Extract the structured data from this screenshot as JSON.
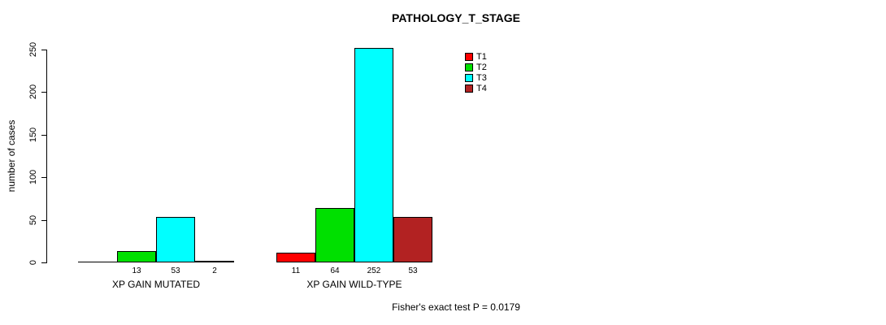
{
  "chart_data": {
    "type": "bar",
    "title": "PATHOLOGY_T_STAGE",
    "ylabel": "number of cases",
    "xlabel": "",
    "ylim": [
      0,
      250
    ],
    "yticks": [
      0,
      50,
      100,
      150,
      200,
      250
    ],
    "grid": false,
    "legend_position": "top-right",
    "series": [
      {
        "name": "T1",
        "color": "#FF0000"
      },
      {
        "name": "T2",
        "color": "#00E000"
      },
      {
        "name": "T3",
        "color": "#00FFFF"
      },
      {
        "name": "T4",
        "color": "#B22222"
      }
    ],
    "groups": [
      {
        "label": "XP GAIN MUTATED",
        "values": [
          0,
          13,
          53,
          2
        ],
        "value_labels": [
          "",
          "13",
          "53",
          "2"
        ]
      },
      {
        "label": "XP GAIN WILD-TYPE",
        "values": [
          11,
          64,
          252,
          53
        ],
        "value_labels": [
          "11",
          "64",
          "252",
          "53"
        ]
      }
    ],
    "footnote": "Fisher's exact test P = 0.0179"
  }
}
